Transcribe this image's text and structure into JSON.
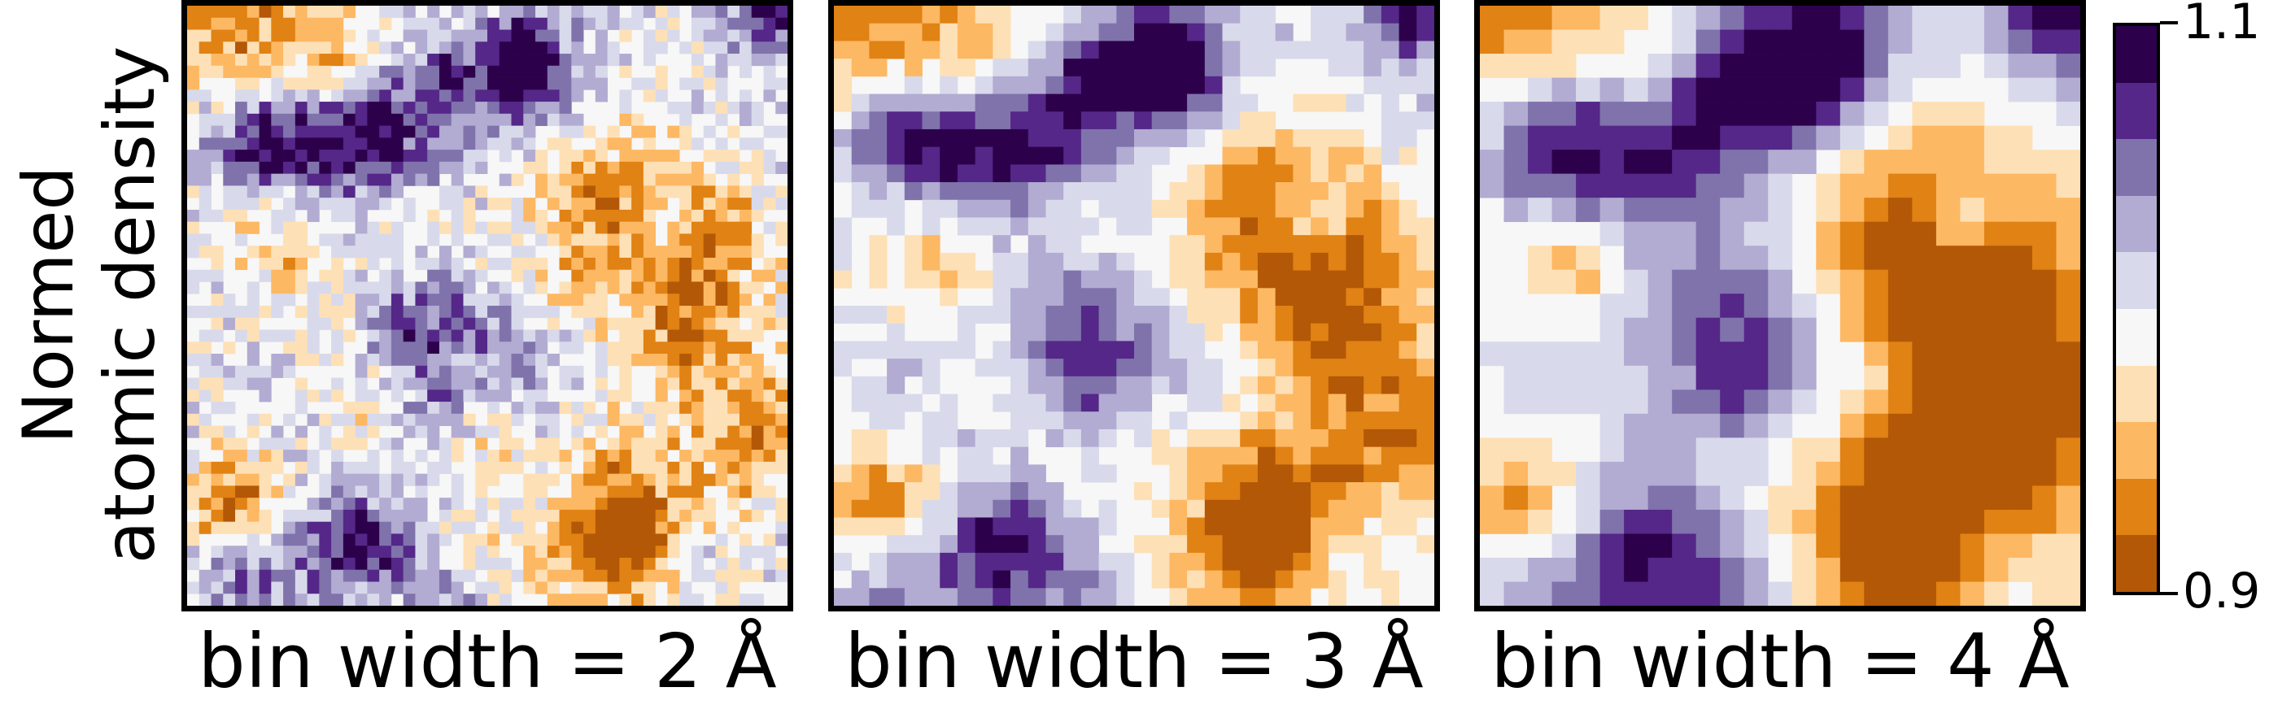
{
  "ylabel": [
    "Normed",
    "atomic density"
  ],
  "chart_data": {
    "type": "heatmap",
    "panels": [
      {
        "caption": "bin width = 2 Å",
        "bin_width_A": 2
      },
      {
        "caption": "bin width = 3 Å",
        "bin_width_A": 3
      },
      {
        "caption": "bin width = 4 Å",
        "bin_width_A": 4
      }
    ],
    "colorbar": {
      "min_label": "0.9",
      "max_label": "1.1",
      "range": [
        0.9,
        1.1
      ],
      "levels": 10,
      "colors": [
        "#b35806",
        "#e08214",
        "#fdb863",
        "#fee0b6",
        "#f7f7f7",
        "#d8daeb",
        "#b2abd2",
        "#8073ac",
        "#542788",
        "#2d004b"
      ]
    }
  }
}
